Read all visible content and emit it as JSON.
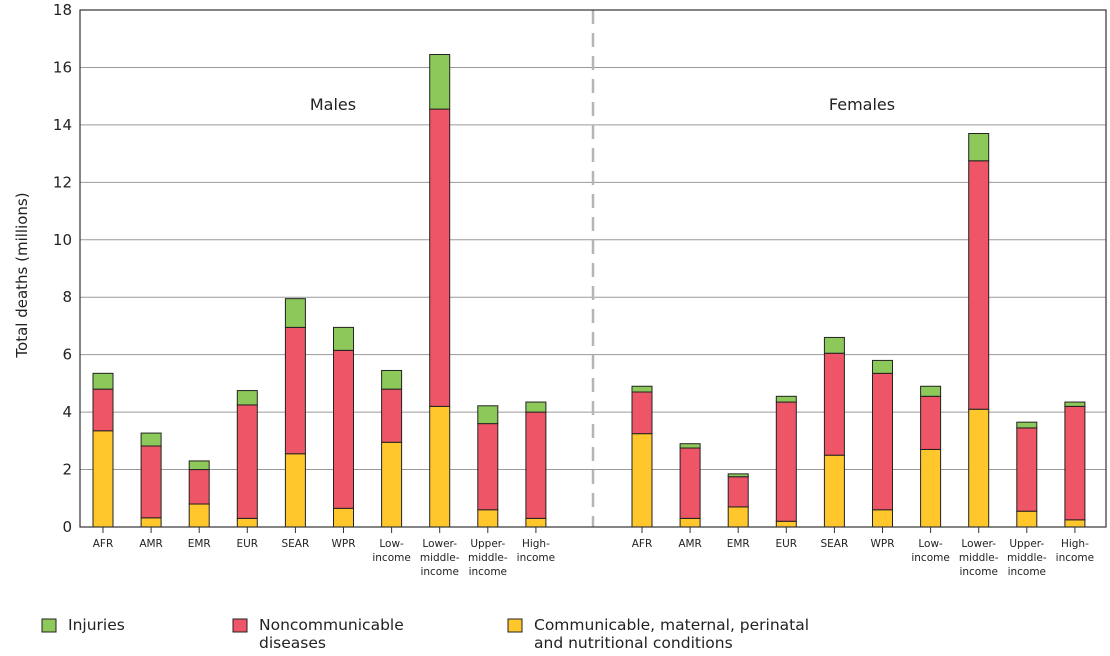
{
  "chart_data": {
    "type": "bar",
    "stacked": true,
    "ylabel": "Total deaths (millions)",
    "ylim": [
      0,
      18
    ],
    "yticks": [
      0,
      2,
      4,
      6,
      8,
      10,
      12,
      14,
      16,
      18
    ],
    "grid": true,
    "legend_position": "bottom",
    "groups": [
      {
        "label": "Males",
        "categories": [
          [
            "AFR"
          ],
          [
            "AMR"
          ],
          [
            "EMR"
          ],
          [
            "EUR"
          ],
          [
            "SEAR"
          ],
          [
            "WPR"
          ],
          [
            "Low-",
            "income"
          ],
          [
            "Lower-",
            "middle-",
            "income"
          ],
          [
            "Upper-",
            "middle-",
            "income"
          ],
          [
            "High-",
            "income"
          ]
        ],
        "series": [
          {
            "name": "Communicable, maternal, perinatal and nutritional conditions",
            "values": [
              3.35,
              0.32,
              0.8,
              0.3,
              2.55,
              0.65,
              2.95,
              4.2,
              0.6,
              0.3
            ]
          },
          {
            "name": "Noncommunicable diseases",
            "values": [
              1.45,
              2.5,
              1.2,
              3.95,
              4.4,
              5.5,
              1.85,
              10.35,
              3.0,
              3.7
            ]
          },
          {
            "name": "Injuries",
            "values": [
              0.55,
              0.45,
              0.3,
              0.5,
              1.0,
              0.8,
              0.65,
              1.9,
              0.62,
              0.35
            ]
          }
        ]
      },
      {
        "label": "Females",
        "categories": [
          [
            "AFR"
          ],
          [
            "AMR"
          ],
          [
            "EMR"
          ],
          [
            "EUR"
          ],
          [
            "SEAR"
          ],
          [
            "WPR"
          ],
          [
            "Low-",
            "income"
          ],
          [
            "Lower-",
            "middle-",
            "income"
          ],
          [
            "Upper-",
            "middle-",
            "income"
          ],
          [
            "High-",
            "income"
          ]
        ],
        "series": [
          {
            "name": "Communicable, maternal, perinatal and nutritional conditions",
            "values": [
              3.25,
              0.3,
              0.7,
              0.2,
              2.5,
              0.6,
              2.7,
              4.1,
              0.55,
              0.25
            ]
          },
          {
            "name": "Noncommunicable diseases",
            "values": [
              1.45,
              2.45,
              1.05,
              4.15,
              3.55,
              4.75,
              1.85,
              8.65,
              2.9,
              3.95
            ]
          },
          {
            "name": "Injuries",
            "values": [
              0.2,
              0.15,
              0.1,
              0.2,
              0.55,
              0.45,
              0.35,
              0.95,
              0.2,
              0.15
            ]
          }
        ]
      }
    ],
    "legend": [
      {
        "label_lines": [
          "Injuries"
        ],
        "color": "#8dc85a"
      },
      {
        "label_lines": [
          "Noncommunicable",
          "diseases"
        ],
        "color": "#ee5566"
      },
      {
        "label_lines": [
          "Communicable, maternal, perinatal",
          "and nutritional conditions"
        ],
        "color": "#ffc72c"
      }
    ],
    "colors": {
      "communicable": "#ffc72c",
      "noncommunicable": "#ee5566",
      "injuries": "#8dc85a",
      "grid": "#9a9a9a",
      "divider": "#b5b5b5"
    }
  }
}
